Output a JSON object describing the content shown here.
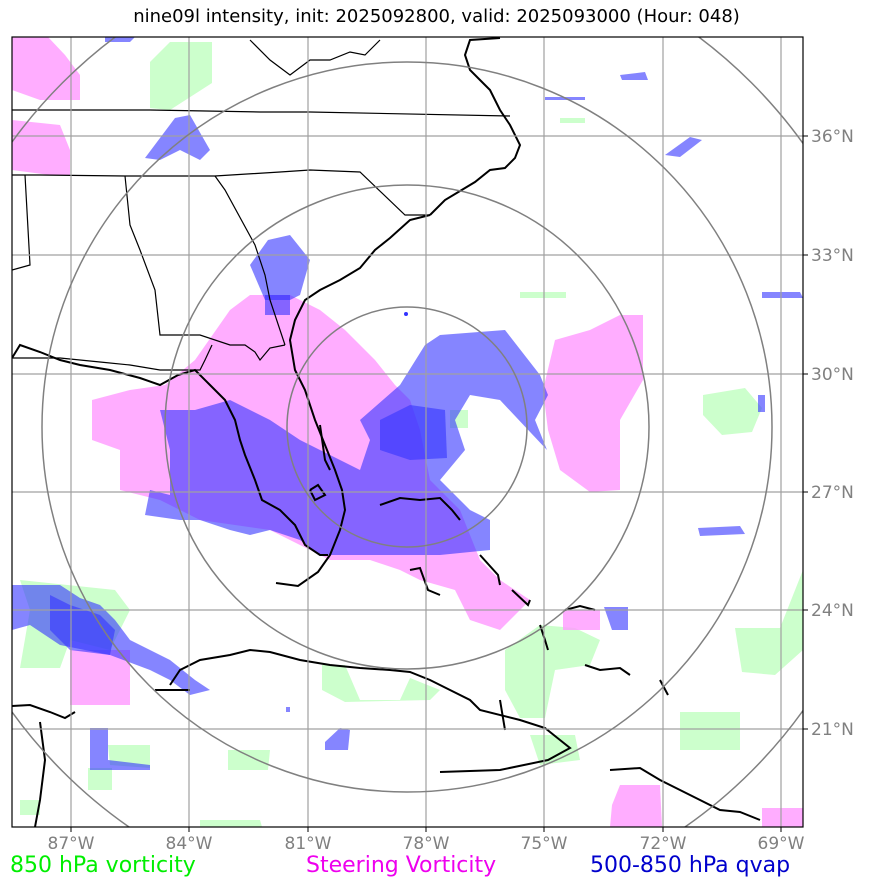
{
  "title": "nine09l intensity, init: 2025092800, valid: 2025093000 (Hour: 048)",
  "map": {
    "lon_labels": [
      "87°W",
      "84°W",
      "81°W",
      "78°W",
      "75°W",
      "72°W",
      "69°W"
    ],
    "lat_labels": [
      "36°N",
      "33°N",
      "30°N",
      "27°N",
      "24°N",
      "21°N"
    ],
    "range_rings": 4,
    "colors": {
      "vorticity_850": "#ccffcc",
      "steering_vorticity": "#ff99ff",
      "qvap_500_850": "#3333ff",
      "coast": "#000000",
      "grid": "#a0a0a0",
      "ring": "#808080"
    }
  },
  "legend": {
    "green": {
      "label": "850 hPa vorticity",
      "color": "#00ee00"
    },
    "pink": {
      "label": "Steering Vorticity",
      "color": "#ee00ee"
    },
    "blue": {
      "label": "500-850 hPa qvap",
      "color": "#0000cc"
    }
  }
}
